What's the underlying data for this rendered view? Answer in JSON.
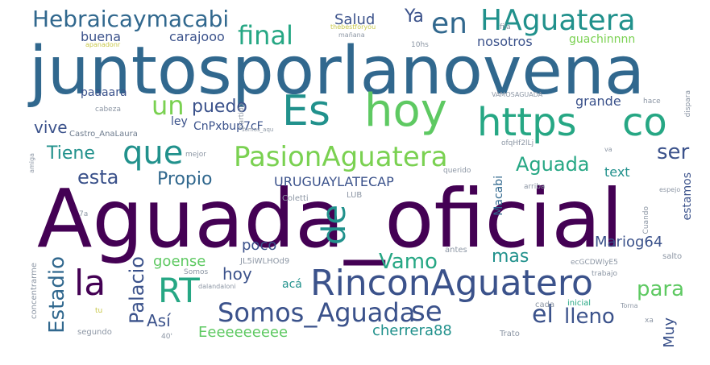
{
  "image": {
    "type": "word-cloud",
    "background": "#ffffff"
  },
  "palette": {
    "dark_purple": "#440154",
    "indigo": "#3b528b",
    "slate_blue": "#31688e",
    "teal": "#21918c",
    "sea_green": "#26a784",
    "green": "#5ec962",
    "lime": "#7ad151",
    "yellow": "#dde318"
  },
  "words": {
    "w01": "juntosporlanovena",
    "w02": "Aguada_oficial",
    "w03": "Es",
    "w04": "hoy",
    "w05": "https",
    "w06": "co",
    "w07": "RinconAguatero",
    "w08": "RT",
    "w09": "la",
    "w10": "PasionAguatera",
    "w11": "HAguatera",
    "w12": "Hebraicaymacabi",
    "w13": "Somos_Aguada",
    "w14": "que",
    "w15": "final",
    "w16": "en",
    "w17": "Ya",
    "w18": "Salud",
    "w19": "un",
    "w20": "puedo",
    "w21": "de",
    "w22": "se",
    "w23": "el",
    "w24": "lleno",
    "w25": "Estadio",
    "w26": "Palacio",
    "w27": "Propio",
    "w28": "esta",
    "w29": "Tiene",
    "w30": "vive",
    "w31": "ser",
    "w32": "Aguada",
    "w33": "URUGUAYLATECAP",
    "w34": "Vamo",
    "w35": "mas",
    "w36": "hoy",
    "w37": "para",
    "w38": "Así",
    "w39": "Eeeeeeeeee",
    "w40": "cherrera88",
    "w41": "Muy",
    "w42": "Mariog64",
    "w43": "goense",
    "w44": "poco",
    "w45": "buena",
    "w46": "carajooo",
    "w47": "nosotros",
    "w48": "guachinnnn",
    "w49": "paaaara",
    "w50": "grande",
    "w51": "ley",
    "w52": "CnPxbup7cF",
    "w53": "text",
    "w54": "Macabi",
    "w55": "estamos",
    "w56": "Castro_AnaLaura",
    "w57": "cabeza",
    "w58": "Coletti",
    "w59": "LUB",
    "w60": "acá",
    "w61": "antes",
    "w62": "Somos",
    "w63": "concentrarme",
    "w64": "segundo",
    "w65": "Trato",
    "w66": "cada",
    "w67": "inicial",
    "w68": "trabajo",
    "w69": "salto",
    "w70": "Cuando",
    "w71": "arriba",
    "w72": "querido",
    "w73": "mejor",
    "w74": "amiga",
    "w75": "partido",
    "w76": "hace",
    "w77": "dispara",
    "w78": "VAMOSAGUADA",
    "w79": "JL5iWLHOd9",
    "w80": "ecGCDWlyE5",
    "w81": "10hs",
    "w82": "fila",
    "w83": "mañana",
    "w84": "Torna",
    "w85": "tu",
    "w86": "40'",
    "w87": "7a",
    "w88": "xa",
    "w89": "va",
    "w90": "ofqHf2lLj",
    "w91": "espejo",
    "w92": "dalandaloni",
    "w93": "thebestforyou",
    "w94": "apanadonr",
    "w95": "somos_aqu"
  }
}
